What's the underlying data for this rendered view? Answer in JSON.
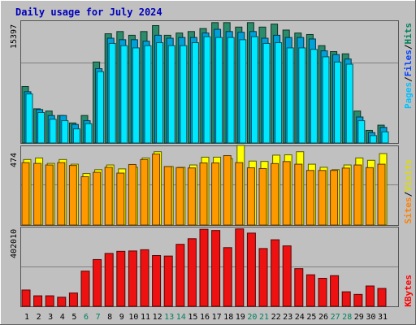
{
  "chart_data": {
    "type": "bar",
    "title": "Daily usage for July 2024",
    "days": [
      "1",
      "2",
      "3",
      "4",
      "5",
      "6",
      "7",
      "8",
      "9",
      "10",
      "11",
      "12",
      "13",
      "14",
      "15",
      "16",
      "17",
      "18",
      "19",
      "20",
      "21",
      "22",
      "23",
      "24",
      "25",
      "26",
      "27",
      "28",
      "29",
      "30",
      "31"
    ],
    "weekend_days": [
      "6",
      "7",
      "13",
      "14",
      "20",
      "21",
      "27",
      "28"
    ],
    "panels": [
      {
        "name": "hits-files-pages",
        "ytick": "15397",
        "ytick_value": 15397,
        "ymax": 16400,
        "legend": [
          {
            "label": "Pages",
            "color": "#00C0FF"
          },
          {
            "label": "Files",
            "color": "#0040FF"
          },
          {
            "label": "Hits",
            "color": "#00805C"
          }
        ],
        "separator": "/",
        "series": [
          {
            "name": "Hits",
            "color": "#2B8C6B",
            "values": [
              7600,
              4600,
              4300,
              3700,
              2700,
              3700,
              10900,
              14700,
              15000,
              14500,
              15000,
              15800,
              14500,
              14800,
              15000,
              15400,
              16200,
              16200,
              15600,
              16200,
              15600,
              16000,
              15200,
              14800,
              14600,
              13100,
              12300,
              12000,
              4300,
              1700,
              2400
            ]
          },
          {
            "name": "Files",
            "color": "#00A0D8",
            "values": [
              6900,
              4500,
              3700,
              3700,
              2500,
              3000,
              10000,
              14100,
              13900,
              13900,
              13700,
              14500,
              14100,
              14200,
              14200,
              14800,
              15300,
              15000,
              14900,
              15000,
              14100,
              14500,
              14200,
              14200,
              14000,
              12400,
              11900,
              11300,
              3500,
              1400,
              2100
            ]
          },
          {
            "name": "Pages",
            "color": "#00E8FF",
            "values": [
              6600,
              4100,
              3200,
              3000,
              1900,
              2600,
              9600,
              13400,
              13100,
              12800,
              13100,
              13500,
              13100,
              13100,
              13500,
              14300,
              14200,
              14200,
              13900,
              14300,
              13400,
              13500,
              12800,
              12800,
              12600,
              11600,
              10900,
              10600,
              3000,
              1000,
              1500
            ]
          }
        ]
      },
      {
        "name": "visits-sites",
        "ytick": "474",
        "ytick_value": 474,
        "ymax": 505,
        "legend": [
          {
            "label": "Sites",
            "color": "#FF8000"
          },
          {
            "label": "Visits",
            "color": "#FFFF00"
          }
        ],
        "separator": "/",
        "series": [
          {
            "name": "Visits",
            "color": "#FFFF00",
            "values": [
              420,
              430,
              395,
              420,
              390,
              330,
              355,
              385,
              360,
              370,
              430,
              470,
              375,
              370,
              385,
              435,
              435,
              425,
              510,
              410,
              408,
              448,
              450,
              470,
              390,
              370,
              355,
              385,
              430,
              415,
              458
            ]
          },
          {
            "name": "Sites",
            "color": "#FF9900",
            "values": [
              400,
              395,
              385,
              400,
              382,
              310,
              338,
              370,
              333,
              388,
              420,
              455,
              375,
              368,
              366,
              398,
              398,
              445,
              400,
              367,
              362,
              394,
              407,
              390,
              350,
              350,
              350,
              365,
              385,
              368,
              390
            ]
          }
        ]
      },
      {
        "name": "kbytes",
        "ytick": "402010",
        "ytick_value": 402010,
        "ymax": 450000,
        "legend": [
          {
            "label": "KBytes",
            "color": "#FF0000"
          }
        ],
        "separator": "",
        "series": [
          {
            "name": "KBytes",
            "color": "#EE1111",
            "values": [
              93000,
              60000,
              60000,
              52000,
              76000,
              201000,
              267000,
              302000,
              314000,
              316000,
              323000,
              290000,
              287000,
              354000,
              386000,
              440000,
              433000,
              335000,
              442000,
              418000,
              330000,
              380000,
              345000,
              215000,
              180000,
              160000,
              175000,
              83000,
              68000,
              116000,
              102000
            ]
          }
        ]
      }
    ]
  }
}
